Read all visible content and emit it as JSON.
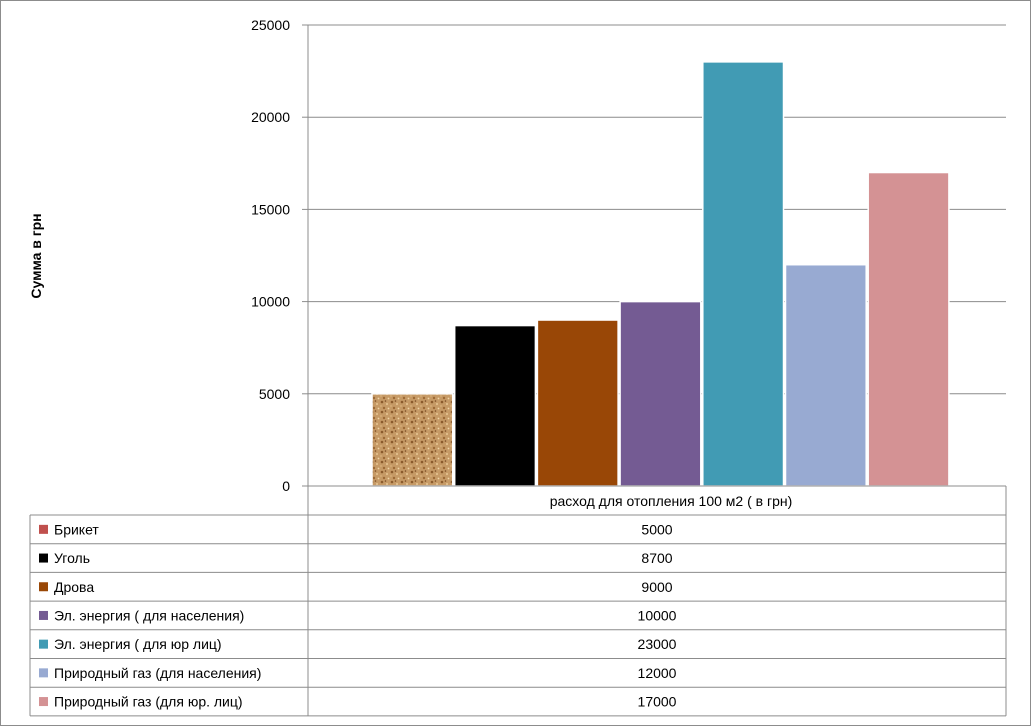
{
  "chart_data": {
    "type": "bar",
    "title": "",
    "xlabel": "",
    "ylabel": "Сумма в грн",
    "ylim": [
      0,
      25000
    ],
    "yticks": [
      "0",
      "5000",
      "10000",
      "15000",
      "20000",
      "25000"
    ],
    "gridlines": true,
    "legend": "data-table-left",
    "categories": [
      "расход для отопления 100 м2 ( в грн)"
    ],
    "series": [
      {
        "name": "Брикет",
        "values": [
          5000
        ],
        "color": "#C79A66",
        "pattern": "cork"
      },
      {
        "name": "Уголь",
        "values": [
          8700
        ],
        "color": "#000000"
      },
      {
        "name": "Дрова",
        "values": [
          9000
        ],
        "color": "#994706"
      },
      {
        "name": "Эл.  энергия ( для населения)",
        "values": [
          10000
        ],
        "color": "#745B93"
      },
      {
        "name": "Эл. энергия ( для юр лиц)",
        "values": [
          23000
        ],
        "color": "#419BB4"
      },
      {
        "name": "Природный газ (для населения)",
        "values": [
          12000
        ],
        "color": "#98AAD2"
      },
      {
        "name": "Природный газ (для юр. лиц)",
        "values": [
          17000
        ],
        "color": "#D49294"
      }
    ],
    "table_values": [
      "5000",
      "8700",
      "9000",
      "10000",
      "23000",
      "12000",
      "17000"
    ],
    "legend_marker_colors": [
      "#C0504D",
      "#000000",
      "#994706",
      "#745B93",
      "#419BB4",
      "#98AAD2",
      "#D49294"
    ]
  }
}
